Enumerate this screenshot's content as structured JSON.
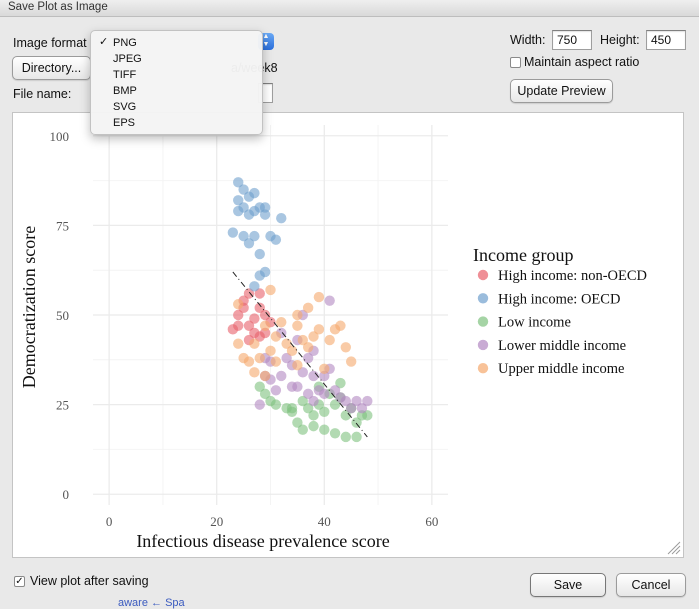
{
  "window": {
    "title": "Save Plot as Image"
  },
  "form": {
    "image_format_label": "Image format",
    "directory_button": "Directory...",
    "directory_path_fragment": "a/week8",
    "file_name_label": "File name:",
    "file_name_value": "",
    "width_label": "Width:",
    "width_value": "750",
    "height_label": "Height:",
    "height_value": "450",
    "maintain_aspect_label": "Maintain aspect ratio",
    "maintain_aspect_checked": false,
    "update_preview_button": "Update Preview",
    "view_after_label": "View plot after saving",
    "view_after_checked": true,
    "view_after_check_glyph": "✓",
    "save_button": "Save",
    "cancel_button": "Cancel"
  },
  "dropdown": {
    "check_glyph": "✓",
    "selected": "PNG",
    "options": [
      "PNG",
      "JPEG",
      "TIFF",
      "BMP",
      "SVG",
      "EPS"
    ]
  },
  "background_text": "aware ← Spa",
  "colors": {
    "dialog_bg": "#e9e9e9",
    "grid": "#ebebeb",
    "select_arrow_blue": "#2b6fdc"
  },
  "chart_data": {
    "type": "scatter",
    "title": "",
    "xlabel": "Infectious disease prevalence score",
    "ylabel": "Democratization score",
    "xlim": [
      -3,
      63
    ],
    "ylim": [
      -3,
      103
    ],
    "xticks": [
      0,
      20,
      40,
      60
    ],
    "yticks": [
      0,
      25,
      50,
      75,
      100
    ],
    "grid": true,
    "legend_title": "Income group",
    "legend_position": "right",
    "trendline": {
      "x": [
        23,
        48
      ],
      "y": [
        62,
        16
      ],
      "style": "dashed",
      "color": "#222222"
    },
    "series": [
      {
        "name": "High income: non-OECD",
        "color": "#e8606a",
        "points": [
          [
            23,
            46
          ],
          [
            24,
            47
          ],
          [
            24,
            50
          ],
          [
            25,
            52
          ],
          [
            25,
            54
          ],
          [
            26,
            43
          ],
          [
            26,
            47
          ],
          [
            27,
            45
          ],
          [
            27,
            49
          ],
          [
            28,
            44
          ],
          [
            28,
            52
          ],
          [
            29,
            45
          ],
          [
            29,
            50
          ],
          [
            30,
            48
          ],
          [
            26,
            56
          ],
          [
            28,
            56
          ]
        ]
      },
      {
        "name": "High income: OECD",
        "color": "#6fa0cd",
        "points": [
          [
            24,
            87
          ],
          [
            24,
            82
          ],
          [
            24,
            79
          ],
          [
            25,
            85
          ],
          [
            25,
            80
          ],
          [
            26,
            83
          ],
          [
            26,
            78
          ],
          [
            27,
            84
          ],
          [
            27,
            79
          ],
          [
            28,
            80
          ],
          [
            29,
            78
          ],
          [
            29,
            80
          ],
          [
            23,
            73
          ],
          [
            25,
            72
          ],
          [
            26,
            70
          ],
          [
            27,
            72
          ],
          [
            28,
            67
          ],
          [
            30,
            72
          ],
          [
            31,
            71
          ],
          [
            32,
            77
          ],
          [
            28,
            61
          ],
          [
            29,
            62
          ],
          [
            27,
            58
          ]
        ]
      },
      {
        "name": "Low income",
        "color": "#7fc27f",
        "points": [
          [
            28,
            30
          ],
          [
            29,
            28
          ],
          [
            30,
            26
          ],
          [
            31,
            25
          ],
          [
            33,
            24
          ],
          [
            34,
            23
          ],
          [
            35,
            20
          ],
          [
            36,
            26
          ],
          [
            37,
            24
          ],
          [
            38,
            22
          ],
          [
            39,
            25
          ],
          [
            40,
            23
          ],
          [
            41,
            28
          ],
          [
            42,
            25
          ],
          [
            43,
            27
          ],
          [
            44,
            22
          ],
          [
            45,
            24
          ],
          [
            46,
            20
          ],
          [
            47,
            22
          ],
          [
            48,
            22
          ],
          [
            38,
            19
          ],
          [
            40,
            18
          ],
          [
            42,
            17
          ],
          [
            44,
            16
          ],
          [
            46,
            16
          ],
          [
            36,
            18
          ],
          [
            34,
            24
          ],
          [
            39,
            30
          ],
          [
            43,
            31
          ]
        ]
      },
      {
        "name": "Lower middle income",
        "color": "#b288c2",
        "points": [
          [
            28,
            25
          ],
          [
            29,
            33
          ],
          [
            30,
            32
          ],
          [
            30,
            37
          ],
          [
            31,
            29
          ],
          [
            32,
            33
          ],
          [
            32,
            45
          ],
          [
            33,
            38
          ],
          [
            34,
            36
          ],
          [
            34,
            30
          ],
          [
            35,
            43
          ],
          [
            35,
            30
          ],
          [
            36,
            34
          ],
          [
            37,
            28
          ],
          [
            37,
            38
          ],
          [
            38,
            33
          ],
          [
            38,
            26
          ],
          [
            39,
            29
          ],
          [
            40,
            28
          ],
          [
            40,
            33
          ],
          [
            41,
            35
          ],
          [
            42,
            29
          ],
          [
            43,
            27
          ],
          [
            44,
            26
          ],
          [
            45,
            24
          ],
          [
            46,
            26
          ],
          [
            47,
            24
          ],
          [
            48,
            26
          ],
          [
            36,
            50
          ],
          [
            38,
            40
          ],
          [
            41,
            54
          ],
          [
            29,
            38
          ]
        ]
      },
      {
        "name": "Upper middle income",
        "color": "#f5a86c",
        "points": [
          [
            24,
            42
          ],
          [
            24,
            53
          ],
          [
            25,
            38
          ],
          [
            26,
            37
          ],
          [
            27,
            34
          ],
          [
            27,
            42
          ],
          [
            28,
            38
          ],
          [
            29,
            33
          ],
          [
            29,
            47
          ],
          [
            30,
            40
          ],
          [
            30,
            57
          ],
          [
            31,
            44
          ],
          [
            32,
            48
          ],
          [
            33,
            42
          ],
          [
            34,
            40
          ],
          [
            35,
            36
          ],
          [
            35,
            47
          ],
          [
            36,
            43
          ],
          [
            37,
            41
          ],
          [
            37,
            52
          ],
          [
            38,
            44
          ],
          [
            39,
            46
          ],
          [
            39,
            55
          ],
          [
            40,
            35
          ],
          [
            41,
            43
          ],
          [
            42,
            46
          ],
          [
            43,
            47
          ],
          [
            44,
            41
          ],
          [
            45,
            37
          ],
          [
            31,
            37
          ],
          [
            35,
            50
          ]
        ]
      }
    ]
  }
}
